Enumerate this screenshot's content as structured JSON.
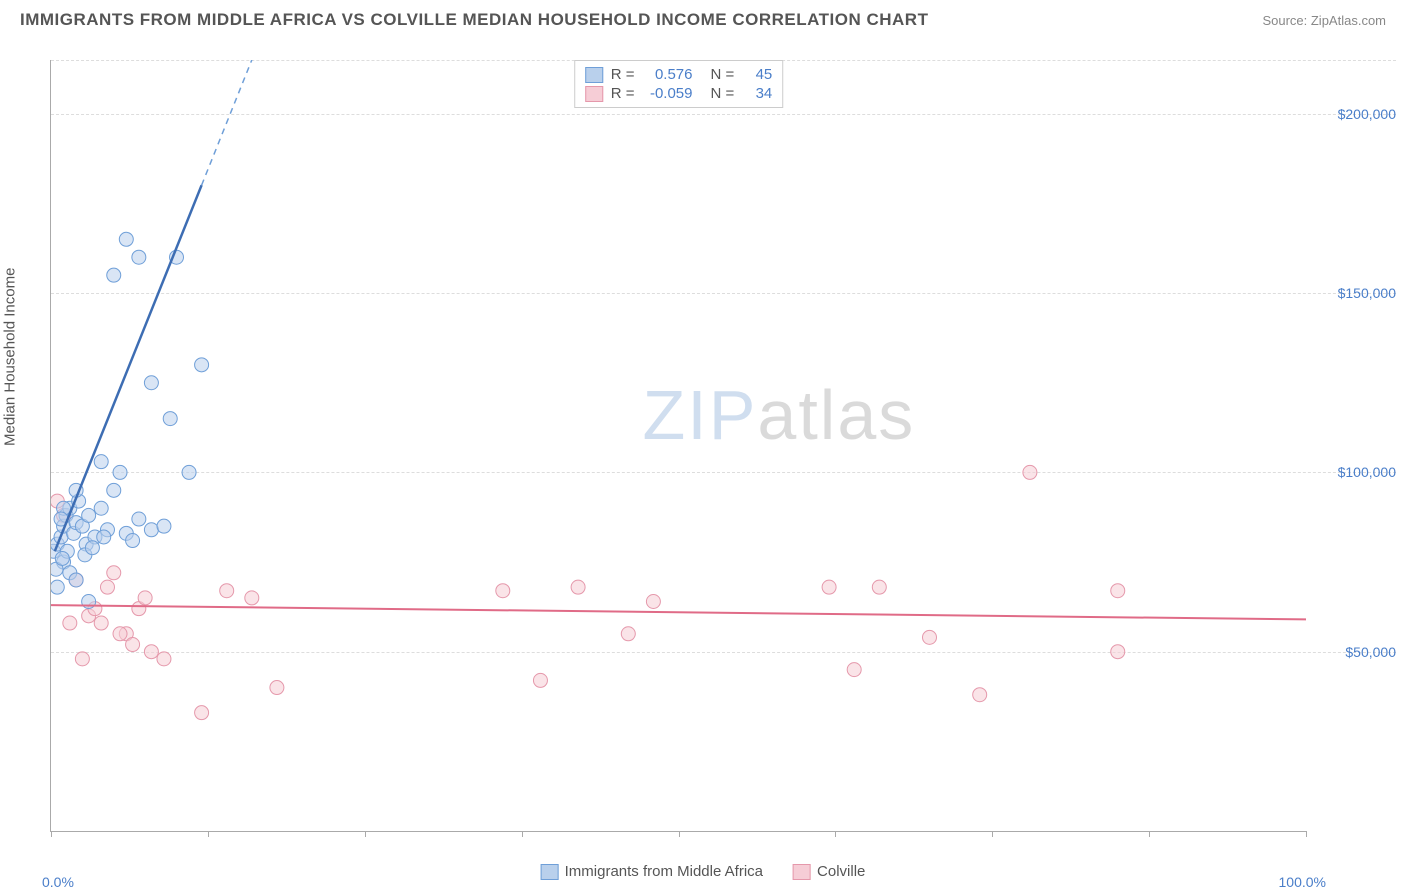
{
  "header": {
    "title": "IMMIGRANTS FROM MIDDLE AFRICA VS COLVILLE MEDIAN HOUSEHOLD INCOME CORRELATION CHART",
    "source": "Source: ZipAtlas.com"
  },
  "watermark": {
    "part1": "ZIP",
    "part2": "atlas"
  },
  "axes": {
    "y_label": "Median Household Income",
    "x_min_label": "0.0%",
    "x_max_label": "100.0%",
    "xlim": [
      0,
      100
    ],
    "ylim": [
      0,
      215000
    ],
    "y_ticks": [
      50000,
      100000,
      150000,
      200000
    ],
    "y_tick_labels": [
      "$50,000",
      "$100,000",
      "$150,000",
      "$200,000"
    ],
    "x_ticks": [
      0,
      12.5,
      25,
      37.5,
      50,
      62.5,
      75,
      87.5,
      100
    ],
    "grid_color": "#dddddd",
    "axis_color": "#aaaaaa",
    "label_color": "#4a7ec9",
    "y_label_fontsize": 15
  },
  "series": {
    "blue": {
      "name": "Immigrants from Middle Africa",
      "color_fill": "#b9d0ec",
      "color_stroke": "#6f9fd8",
      "line_color": "#3d6db3",
      "marker_radius": 7,
      "fill_opacity": 0.55,
      "R": "0.576",
      "N": "45",
      "trend": {
        "x1": 0.3,
        "y1": 78000,
        "x2": 16,
        "y2": 215000,
        "dashed_after_x": 12
      },
      "points": [
        [
          0.2,
          78000
        ],
        [
          0.5,
          80000
        ],
        [
          0.8,
          82000
        ],
        [
          1.0,
          85000
        ],
        [
          1.2,
          88000
        ],
        [
          1.5,
          90000
        ],
        [
          1.8,
          83000
        ],
        [
          2.0,
          86000
        ],
        [
          2.2,
          92000
        ],
        [
          2.5,
          85000
        ],
        [
          2.8,
          80000
        ],
        [
          3.0,
          88000
        ],
        [
          3.5,
          82000
        ],
        [
          4.0,
          90000
        ],
        [
          4.5,
          84000
        ],
        [
          5.0,
          95000
        ],
        [
          5.5,
          100000
        ],
        [
          6.0,
          83000
        ],
        [
          6.5,
          81000
        ],
        [
          7.0,
          87000
        ],
        [
          8.0,
          84000
        ],
        [
          9.0,
          85000
        ],
        [
          4.0,
          103000
        ],
        [
          5.0,
          155000
        ],
        [
          7.0,
          160000
        ],
        [
          6.0,
          165000
        ],
        [
          8.0,
          125000
        ],
        [
          10.0,
          160000
        ],
        [
          9.5,
          115000
        ],
        [
          11.0,
          100000
        ],
        [
          12.0,
          130000
        ],
        [
          1.0,
          75000
        ],
        [
          1.5,
          72000
        ],
        [
          2.0,
          70000
        ],
        [
          0.5,
          68000
        ],
        [
          3.0,
          64000
        ],
        [
          1.0,
          90000
        ],
        [
          2.0,
          95000
        ],
        [
          0.8,
          87000
        ],
        [
          1.3,
          78000
        ],
        [
          2.7,
          77000
        ],
        [
          3.3,
          79000
        ],
        [
          4.2,
          82000
        ],
        [
          0.4,
          73000
        ],
        [
          0.9,
          76000
        ]
      ]
    },
    "pink": {
      "name": "Colville",
      "color_fill": "#f6cdd6",
      "color_stroke": "#e598ab",
      "line_color": "#e06b87",
      "marker_radius": 7,
      "fill_opacity": 0.55,
      "R": "-0.059",
      "N": "34",
      "trend": {
        "x1": 0,
        "y1": 63000,
        "x2": 100,
        "y2": 59000
      },
      "points": [
        [
          0.5,
          92000
        ],
        [
          1.0,
          88000
        ],
        [
          2.0,
          70000
        ],
        [
          3.0,
          60000
        ],
        [
          4.0,
          58000
        ],
        [
          5.0,
          72000
        ],
        [
          6.0,
          55000
        ],
        [
          7.0,
          62000
        ],
        [
          8.0,
          50000
        ],
        [
          9.0,
          48000
        ],
        [
          12.0,
          33000
        ],
        [
          14.0,
          67000
        ],
        [
          16.0,
          65000
        ],
        [
          18.0,
          40000
        ],
        [
          36.0,
          67000
        ],
        [
          39.0,
          42000
        ],
        [
          42.0,
          68000
        ],
        [
          46.0,
          55000
        ],
        [
          48.0,
          64000
        ],
        [
          62.0,
          68000
        ],
        [
          64.0,
          45000
        ],
        [
          66.0,
          68000
        ],
        [
          70.0,
          54000
        ],
        [
          74.0,
          38000
        ],
        [
          78.0,
          100000
        ],
        [
          85.0,
          67000
        ],
        [
          85.0,
          50000
        ],
        [
          3.5,
          62000
        ],
        [
          4.5,
          68000
        ],
        [
          5.5,
          55000
        ],
        [
          6.5,
          52000
        ],
        [
          7.5,
          65000
        ],
        [
          2.5,
          48000
        ],
        [
          1.5,
          58000
        ]
      ]
    }
  },
  "legend_top": {
    "rows": [
      {
        "swatch": "blue",
        "r_label": "R =",
        "r_val": "0.576",
        "n_label": "N =",
        "n_val": "45"
      },
      {
        "swatch": "pink",
        "r_label": "R =",
        "r_val": "-0.059",
        "n_label": "N =",
        "n_val": "34"
      }
    ]
  }
}
